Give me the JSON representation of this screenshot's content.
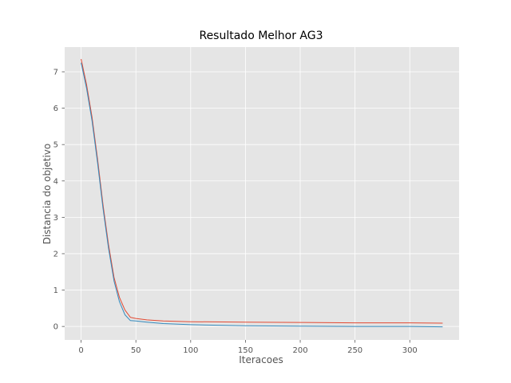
{
  "chart_data": {
    "type": "line",
    "title": "Resultado Melhor AG3",
    "xlabel": "Iteracoes",
    "ylabel": "Distancia do objetivo",
    "xlim": [
      -15,
      345
    ],
    "ylim": [
      -0.37,
      7.68
    ],
    "x_ticks": [
      0,
      50,
      100,
      150,
      200,
      250,
      300
    ],
    "y_ticks": [
      0,
      1,
      2,
      3,
      4,
      5,
      6,
      7
    ],
    "grid": true,
    "legend": "none",
    "colors": {
      "background": "#e5e5e5",
      "grid": "#ffffff",
      "series_red": "#e24a33",
      "series_blue": "#348abd"
    },
    "series": [
      {
        "color": "#e24a33",
        "x": [
          0,
          5,
          10,
          15,
          20,
          25,
          30,
          35,
          40,
          45,
          50,
          60,
          75,
          100,
          150,
          200,
          250,
          300,
          330
        ],
        "values": [
          7.35,
          6.65,
          5.75,
          4.6,
          3.35,
          2.25,
          1.35,
          0.8,
          0.45,
          0.25,
          0.22,
          0.18,
          0.15,
          0.13,
          0.12,
          0.11,
          0.1,
          0.1,
          0.09
        ]
      },
      {
        "color": "#348abd",
        "x": [
          0,
          5,
          10,
          15,
          20,
          25,
          30,
          35,
          40,
          45,
          50,
          60,
          75,
          100,
          150,
          200,
          250,
          300,
          330
        ],
        "values": [
          7.25,
          6.55,
          5.65,
          4.5,
          3.25,
          2.15,
          1.25,
          0.68,
          0.32,
          0.16,
          0.15,
          0.12,
          0.08,
          0.05,
          0.02,
          0.01,
          0.0,
          0.0,
          -0.01
        ]
      }
    ]
  }
}
